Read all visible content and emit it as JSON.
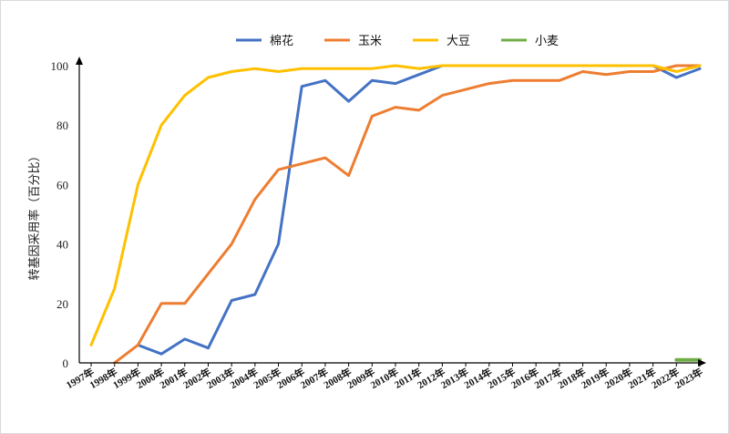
{
  "chart_data": {
    "type": "line",
    "title": "",
    "ylabel": "转基因采用率（百分比）",
    "xlabel": "",
    "ylim": [
      0,
      100
    ],
    "yticks": [
      0,
      20,
      40,
      60,
      80,
      100
    ],
    "grid": false,
    "legend": "top",
    "categories": [
      "1997年",
      "1998年",
      "1999年",
      "2000年",
      "2001年",
      "2002年",
      "2003年",
      "2004年",
      "2005年",
      "2006年",
      "2007年",
      "2008年",
      "2009年",
      "2010年",
      "2011年",
      "2012年",
      "2013年",
      "2014年",
      "2015年",
      "2016年",
      "2017年",
      "2018年",
      "2019年",
      "2020年",
      "2021年",
      "2022年",
      "2023年"
    ],
    "series": [
      {
        "name": "棉花",
        "color": "#4472c4",
        "values": [
          null,
          null,
          6,
          3,
          8,
          5,
          21,
          23,
          40,
          93,
          95,
          88,
          95,
          94,
          97,
          100,
          100,
          100,
          100,
          100,
          100,
          100,
          100,
          100,
          100,
          96,
          99
        ]
      },
      {
        "name": "玉米",
        "color": "#ed7d31",
        "values": [
          null,
          0,
          6,
          20,
          20,
          30,
          40,
          55,
          65,
          67,
          69,
          63,
          83,
          86,
          85,
          90,
          92,
          94,
          95,
          95,
          95,
          98,
          97,
          98,
          98,
          100,
          100
        ]
      },
      {
        "name": "大豆",
        "color": "#ffc000",
        "values": [
          6,
          25,
          60,
          80,
          90,
          96,
          98,
          99,
          98,
          99,
          99,
          99,
          99,
          100,
          99,
          100,
          100,
          100,
          100,
          100,
          100,
          100,
          100,
          100,
          100,
          98,
          100
        ]
      },
      {
        "name": "小麦",
        "color": "#70ad47",
        "values": [
          null,
          null,
          null,
          null,
          null,
          null,
          null,
          null,
          null,
          null,
          null,
          null,
          null,
          null,
          null,
          null,
          null,
          null,
          null,
          null,
          null,
          null,
          null,
          null,
          null,
          1,
          1
        ]
      }
    ]
  }
}
